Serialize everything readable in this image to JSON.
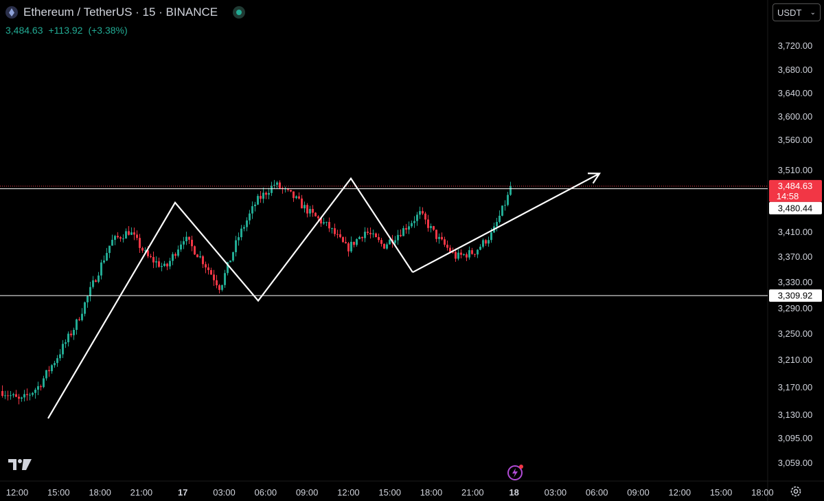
{
  "header": {
    "symbol_title": "Ethereum / TetherUS · 15 · BINANCE",
    "last_price": "3,484.63",
    "change": "+113.92",
    "change_pct": "(+3.38%)",
    "currency_select": "USDT",
    "status_color": "#22ab94"
  },
  "colors": {
    "up": "#22ab94",
    "down": "#f23645",
    "background": "#000000",
    "annotation": "#ffffff"
  },
  "icons": [
    "tradingview-logo-icon",
    "ethereum-coin-icon",
    "market-status-icon",
    "chevron-down-icon",
    "flash-alert-icon",
    "settings-gear-icon"
  ],
  "chart_data": {
    "type": "candlestick",
    "symbol": "ETHUSDT",
    "interval_minutes": 15,
    "exchange": "BINANCE",
    "x_tick_labels": [
      "12:00",
      "15:00",
      "18:00",
      "21:00",
      "17",
      "03:00",
      "06:00",
      "09:00",
      "12:00",
      "15:00",
      "18:00",
      "21:00",
      "18",
      "03:00",
      "06:00",
      "09:00",
      "12:00",
      "15:00",
      "18:00"
    ],
    "y_tick_labels": [
      "3,720.00",
      "3,680.00",
      "3,640.00",
      "3,600.00",
      "3,560.00",
      "3,510.00",
      "3,410.00",
      "3,370.00",
      "3,330.00",
      "3,290.00",
      "3,250.00",
      "3,210.00",
      "3,170.00",
      "3,130.00",
      "3,095.00",
      "3,059.00"
    ],
    "y_range": [
      3040,
      3755
    ],
    "last_price_label": {
      "value": "3,484.63",
      "countdown": "14:58",
      "color": "#f23645"
    },
    "horizontal_lines": [
      {
        "value": 3480.44,
        "label": "3,480.44"
      },
      {
        "value": 3309.92,
        "label": "3,309.92"
      }
    ],
    "pattern_path_prices": [
      3125,
      3458,
      3302,
      3497,
      3346
    ],
    "trend_arrow_prices": [
      3346,
      3505
    ],
    "price_path_points": [
      3165,
      3150,
      3172,
      3214,
      3262,
      3328,
      3395,
      3412,
      3370,
      3352,
      3402,
      3366,
      3322,
      3402,
      3460,
      3488,
      3468,
      3440,
      3418,
      3383,
      3412,
      3388,
      3412,
      3440,
      3400,
      3370,
      3378,
      3408,
      3478
    ],
    "candle_count": 186,
    "grid": false
  }
}
